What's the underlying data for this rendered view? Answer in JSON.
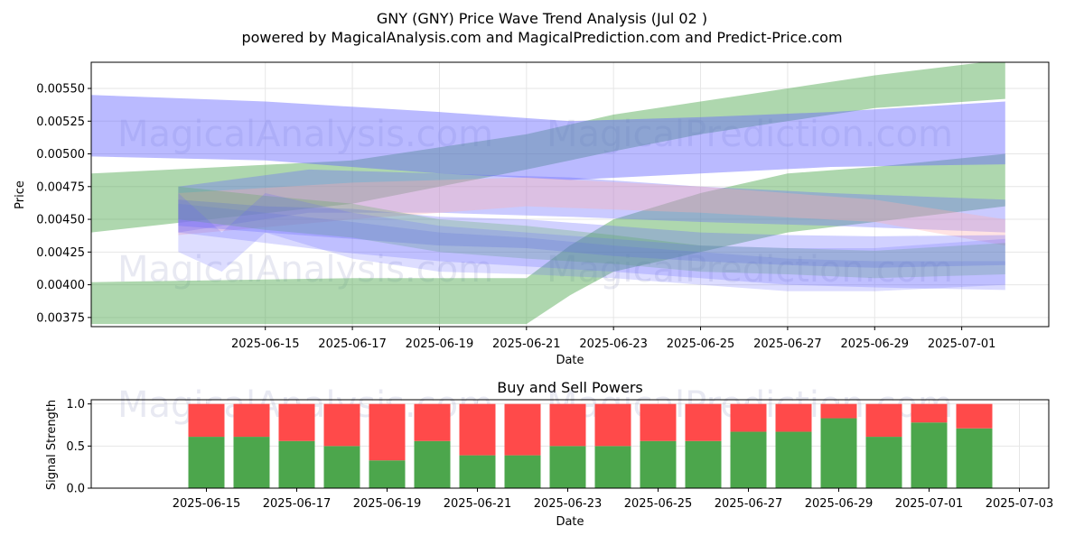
{
  "title": "GNY (GNY) Price Wave Trend Analysis (Jul 02 )",
  "subtitle": "powered by MagicalAnalysis.com and MagicalPrediction.com and Predict-Price.com",
  "watermarks": [
    "MagicalAnalysis.com",
    "MagicalPrediction.com"
  ],
  "colors": {
    "green": "#4ca64c",
    "red": "#ff4a4a",
    "blue": "#6666ff",
    "pink": "#ffb0b0",
    "violet": "#c080e0"
  },
  "chart_data": [
    {
      "type": "area",
      "title": "",
      "xlabel": "Date",
      "ylabel": "Price",
      "x_range": [
        "2025-06-11",
        "2025-07-03"
      ],
      "ylim": [
        0.00368,
        0.0057
      ],
      "x_ticks": [
        "2025-06-15",
        "2025-06-17",
        "2025-06-19",
        "2025-06-21",
        "2025-06-23",
        "2025-06-25",
        "2025-06-27",
        "2025-06-29",
        "2025-07-01"
      ],
      "y_ticks": [
        "0.00375",
        "0.00400",
        "0.00425",
        "0.00450",
        "0.00475",
        "0.00500",
        "0.00525",
        "0.00550"
      ],
      "grid": true,
      "bands": [
        {
          "color": "green",
          "opacity": 0.45,
          "points": [
            [
              "2025-06-11",
              0.00485,
              0.0044
            ],
            [
              "2025-06-17",
              0.00495,
              0.00462
            ],
            [
              "2025-06-21",
              0.00515,
              0.00488
            ],
            [
              "2025-06-23",
              0.0053,
              0.00502
            ],
            [
              "2025-06-25",
              0.0054,
              0.00515
            ],
            [
              "2025-06-27",
              0.0055,
              0.00525
            ],
            [
              "2025-06-29",
              0.0056,
              0.00535
            ],
            [
              "2025-07-02",
              0.00572,
              0.00542
            ]
          ]
        },
        {
          "color": "green",
          "opacity": 0.45,
          "points": [
            [
              "2025-06-11",
              0.00402,
              0.0037
            ],
            [
              "2025-06-17",
              0.00405,
              0.0037
            ],
            [
              "2025-06-21",
              0.00405,
              0.0037
            ],
            [
              "2025-06-22",
              0.0043,
              0.00392
            ],
            [
              "2025-06-23",
              0.0045,
              0.0041
            ],
            [
              "2025-06-25",
              0.0047,
              0.00425
            ],
            [
              "2025-06-27",
              0.00485,
              0.0044
            ],
            [
              "2025-06-29",
              0.0049,
              0.00448
            ],
            [
              "2025-07-02",
              0.005,
              0.0046
            ]
          ]
        },
        {
          "color": "blue",
          "opacity": 0.45,
          "points": [
            [
              "2025-06-11",
              0.00545,
              0.00498
            ],
            [
              "2025-06-15",
              0.0054,
              0.00495
            ],
            [
              "2025-06-19",
              0.00532,
              0.00485
            ],
            [
              "2025-06-22",
              0.00525,
              0.0048
            ],
            [
              "2025-06-25",
              0.00528,
              0.00485
            ],
            [
              "2025-06-28",
              0.00532,
              0.0049
            ],
            [
              "2025-07-02",
              0.0054,
              0.00492
            ]
          ]
        },
        {
          "color": "blue",
          "opacity": 0.35,
          "points": [
            [
              "2025-06-13",
              0.00475,
              0.0044
            ],
            [
              "2025-06-16",
              0.00488,
              0.00455
            ],
            [
              "2025-06-19",
              0.00485,
              0.00455
            ],
            [
              "2025-06-22",
              0.00482,
              0.00452
            ],
            [
              "2025-06-25",
              0.00475,
              0.00448
            ],
            [
              "2025-06-28",
              0.0047,
              0.00445
            ],
            [
              "2025-07-02",
              0.00465,
              0.0044
            ]
          ]
        },
        {
          "color": "pink",
          "opacity": 0.35,
          "points": [
            [
              "2025-06-13",
              0.0047,
              0.00438
            ],
            [
              "2025-06-17",
              0.00478,
              0.0045
            ],
            [
              "2025-06-21",
              0.00482,
              0.0046
            ],
            [
              "2025-06-25",
              0.00475,
              0.00455
            ],
            [
              "2025-06-29",
              0.00465,
              0.00448
            ],
            [
              "2025-07-02",
              0.0045,
              0.0043
            ]
          ]
        },
        {
          "color": "blue",
          "opacity": 0.3,
          "points": [
            [
              "2025-06-13",
              0.00465,
              0.00445
            ],
            [
              "2025-06-15",
              0.0046,
              0.0044
            ],
            [
              "2025-06-17",
              0.00458,
              0.00435
            ],
            [
              "2025-06-19",
              0.00452,
              0.0043
            ],
            [
              "2025-06-21",
              0.0045,
              0.00428
            ],
            [
              "2025-06-23",
              0.00445,
              0.00422
            ],
            [
              "2025-06-25",
              0.0044,
              0.00418
            ],
            [
              "2025-06-27",
              0.00438,
              0.00415
            ],
            [
              "2025-06-29",
              0.00437,
              0.00413
            ],
            [
              "2025-07-02",
              0.00438,
              0.00415
            ]
          ]
        },
        {
          "color": "blue",
          "opacity": 0.25,
          "points": [
            [
              "2025-06-13",
              0.00462,
              0.0044
            ],
            [
              "2025-06-15",
              0.00455,
              0.00432
            ],
            [
              "2025-06-17",
              0.00448,
              0.00424
            ],
            [
              "2025-06-19",
              0.0044,
              0.00418
            ],
            [
              "2025-06-21",
              0.00436,
              0.00414
            ],
            [
              "2025-06-23",
              0.0043,
              0.0041
            ],
            [
              "2025-06-25",
              0.00425,
              0.00405
            ],
            [
              "2025-06-27",
              0.0042,
              0.004
            ],
            [
              "2025-06-29",
              0.00418,
              0.00398
            ],
            [
              "2025-07-02",
              0.00418,
              0.00396
            ]
          ]
        },
        {
          "color": "green",
          "opacity": 0.25,
          "points": [
            [
              "2025-06-13",
              0.00475,
              0.0045
            ],
            [
              "2025-06-15",
              0.00468,
              0.00442
            ],
            [
              "2025-06-17",
              0.00462,
              0.00436
            ],
            [
              "2025-06-19",
              0.0045,
              0.00425
            ],
            [
              "2025-06-21",
              0.00445,
              0.0042
            ],
            [
              "2025-06-23",
              0.00438,
              0.00416
            ],
            [
              "2025-06-25",
              0.0043,
              0.0041
            ],
            [
              "2025-06-27",
              0.00428,
              0.00408
            ],
            [
              "2025-06-29",
              0.00426,
              0.00405
            ],
            [
              "2025-07-02",
              0.00432,
              0.00408
            ]
          ]
        },
        {
          "color": "blue",
          "opacity": 0.22,
          "points": [
            [
              "2025-06-13",
              0.0047,
              0.00425
            ],
            [
              "2025-06-14",
              0.0044,
              0.0041
            ],
            [
              "2025-06-15",
              0.0047,
              0.0044
            ],
            [
              "2025-06-17",
              0.00455,
              0.0042
            ],
            [
              "2025-06-19",
              0.00445,
              0.0041
            ],
            [
              "2025-06-21",
              0.0044,
              0.00408
            ],
            [
              "2025-06-23",
              0.00435,
              0.00405
            ],
            [
              "2025-06-25",
              0.0043,
              0.004
            ],
            [
              "2025-06-27",
              0.00428,
              0.00395
            ],
            [
              "2025-06-29",
              0.00428,
              0.00395
            ],
            [
              "2025-07-02",
              0.00435,
              0.004
            ]
          ]
        }
      ]
    },
    {
      "type": "bar",
      "title": "Buy and Sell Powers",
      "xlabel": "Date",
      "ylabel": "Signal Strength",
      "ylim": [
        0,
        1.05
      ],
      "y_ticks": [
        "0.0",
        "0.5",
        "1.0"
      ],
      "x_range": [
        "2025-06-13",
        "2025-07-03"
      ],
      "x_ticks": [
        "2025-06-15",
        "2025-06-17",
        "2025-06-19",
        "2025-06-21",
        "2025-06-23",
        "2025-06-25",
        "2025-06-27",
        "2025-06-29",
        "2025-07-01",
        "2025-07-03"
      ],
      "grid": true,
      "categories": [
        "2025-06-15",
        "2025-06-16",
        "2025-06-17",
        "2025-06-18",
        "2025-06-19",
        "2025-06-20",
        "2025-06-21",
        "2025-06-22",
        "2025-06-23",
        "2025-06-24",
        "2025-06-25",
        "2025-06-26",
        "2025-06-27",
        "2025-06-28",
        "2025-06-29",
        "2025-06-30",
        "2025-07-01",
        "2025-07-02"
      ],
      "series": [
        {
          "color": "green",
          "values": [
            0.61,
            0.61,
            0.56,
            0.5,
            0.33,
            0.56,
            0.39,
            0.39,
            0.5,
            0.5,
            0.56,
            0.56,
            0.67,
            0.67,
            0.83,
            0.61,
            0.78,
            0.71
          ]
        },
        {
          "color": "red",
          "values": [
            0.39,
            0.39,
            0.44,
            0.5,
            0.67,
            0.44,
            0.61,
            0.61,
            0.5,
            0.5,
            0.44,
            0.44,
            0.33,
            0.33,
            0.17,
            0.39,
            0.22,
            0.29
          ]
        }
      ]
    }
  ]
}
